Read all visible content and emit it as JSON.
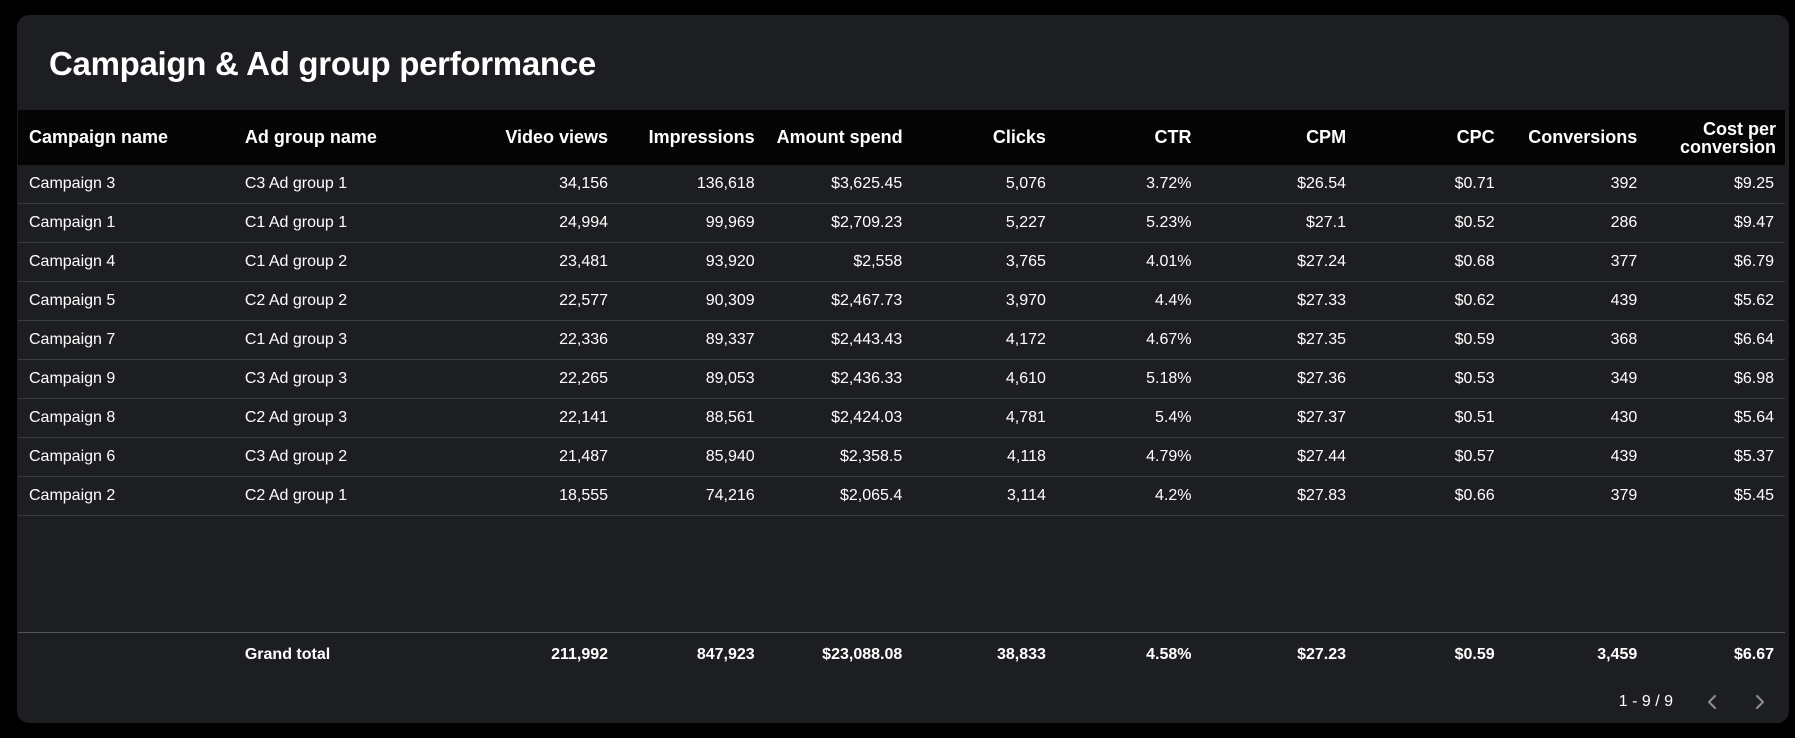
{
  "title": "Campaign & Ad group performance",
  "columns": [
    "Campaign name",
    "Ad group name",
    "Video views",
    "Impressions",
    "Amount spend",
    "Clicks",
    "CTR",
    "CPM",
    "CPC",
    "Conversions",
    "Cost per conversion"
  ],
  "rows": [
    [
      "Campaign 3",
      "C3 Ad group 1",
      "34,156",
      "136,618",
      "$3,625.45",
      "5,076",
      "3.72%",
      "$26.54",
      "$0.71",
      "392",
      "$9.25"
    ],
    [
      "Campaign 1",
      "C1 Ad group 1",
      "24,994",
      "99,969",
      "$2,709.23",
      "5,227",
      "5.23%",
      "$27.1",
      "$0.52",
      "286",
      "$9.47"
    ],
    [
      "Campaign 4",
      "C1 Ad group 2",
      "23,481",
      "93,920",
      "$2,558",
      "3,765",
      "4.01%",
      "$27.24",
      "$0.68",
      "377",
      "$6.79"
    ],
    [
      "Campaign 5",
      "C2 Ad group 2",
      "22,577",
      "90,309",
      "$2,467.73",
      "3,970",
      "4.4%",
      "$27.33",
      "$0.62",
      "439",
      "$5.62"
    ],
    [
      "Campaign 7",
      "C1 Ad group 3",
      "22,336",
      "89,337",
      "$2,443.43",
      "4,172",
      "4.67%",
      "$27.35",
      "$0.59",
      "368",
      "$6.64"
    ],
    [
      "Campaign 9",
      "C3 Ad group 3",
      "22,265",
      "89,053",
      "$2,436.33",
      "4,610",
      "5.18%",
      "$27.36",
      "$0.53",
      "349",
      "$6.98"
    ],
    [
      "Campaign 8",
      "C2 Ad group 3",
      "22,141",
      "88,561",
      "$2,424.03",
      "4,781",
      "5.4%",
      "$27.37",
      "$0.51",
      "430",
      "$5.64"
    ],
    [
      "Campaign 6",
      "C3 Ad group 2",
      "21,487",
      "85,940",
      "$2,358.5",
      "4,118",
      "4.79%",
      "$27.44",
      "$0.57",
      "439",
      "$5.37"
    ],
    [
      "Campaign 2",
      "C2 Ad group 1",
      "18,555",
      "74,216",
      "$2,065.4",
      "3,114",
      "4.2%",
      "$27.83",
      "$0.66",
      "379",
      "$5.45"
    ]
  ],
  "grand_total": [
    "",
    "Grand total",
    "211,992",
    "847,923",
    "$23,088.08",
    "38,833",
    "4.58%",
    "$27.23",
    "$0.59",
    "3,459",
    "$6.67"
  ],
  "pagination": {
    "label": "1 - 9 / 9",
    "prev_icon": "chevron-left-icon",
    "next_icon": "chevron-right-icon"
  },
  "colors": {
    "page_background": "#000000",
    "card_background": "#1d1e21",
    "header_background": "#050505",
    "row_divider": "#3a3b3f",
    "text": "#ffffff",
    "disabled_icon": "#8a8b8f"
  }
}
